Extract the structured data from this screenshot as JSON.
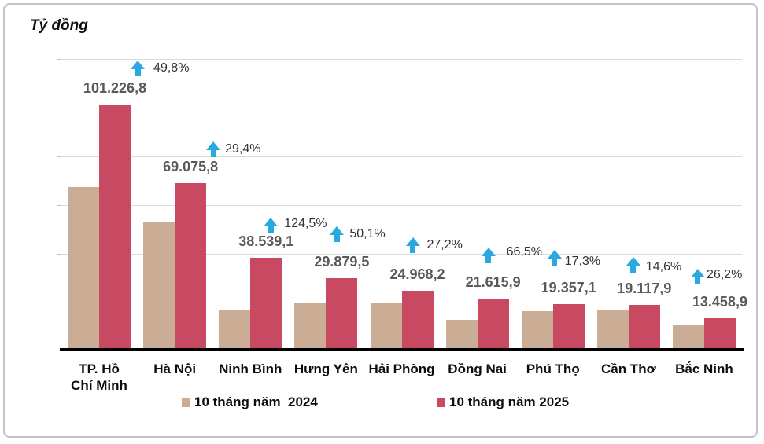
{
  "title": "Tỷ đồng",
  "chart_data": {
    "type": "bar",
    "unit_label": "Tỷ đồng",
    "categories": [
      "TP. Hồ Chí Minh",
      "Hà Nội",
      "Ninh Bình",
      "Hưng Yên",
      "Hải Phòng",
      "Đồng Nai",
      "Phú Thọ",
      "Cần Thơ",
      "Bắc Ninh"
    ],
    "categories_display": [
      "TP. Hồ\nChí Minh",
      "Hà Nội",
      "Ninh Bình",
      "Hưng Yên",
      "Hải Phòng",
      "Đồng Nai",
      "Phú Thọ",
      "Cần Thơ",
      "Bắc Ninh"
    ],
    "series": [
      {
        "name": "10 tháng năm  2024",
        "color": "#CBAD95",
        "values": [
          67575,
          53382,
          17167,
          19906,
          19629,
          12983,
          16502,
          16681,
          10665
        ],
        "values_estimated_from_growth_pct": true
      },
      {
        "name": "10 tháng năm 2025",
        "color": "#C74962",
        "values": [
          101226.8,
          69075.8,
          38539.1,
          29879.5,
          24968.2,
          21615.9,
          19357.1,
          19117.9,
          13458.9
        ],
        "data_labels": [
          "101.226,8",
          "69.075,8",
          "38.539,1",
          "29.879,5",
          "24.968,2",
          "21.615,9",
          "19.357,1",
          "19.117,9",
          "13.458,9"
        ]
      }
    ],
    "growth_labels": [
      "49,8%",
      "29,4%",
      "124,5%",
      "50,1%",
      "27,2%",
      "66,5%",
      "17,3%",
      "14,6%",
      "26,2%"
    ],
    "ylim": [
      0,
      120000
    ],
    "gridline_step": 20000,
    "grid": true,
    "y_tick_labels_shown": false,
    "legend_position": "bottom",
    "colors": {
      "arrow": "#29A9E0",
      "value_label": "#595959",
      "gridline": "#DCDCDC",
      "axis": "#000000"
    }
  }
}
